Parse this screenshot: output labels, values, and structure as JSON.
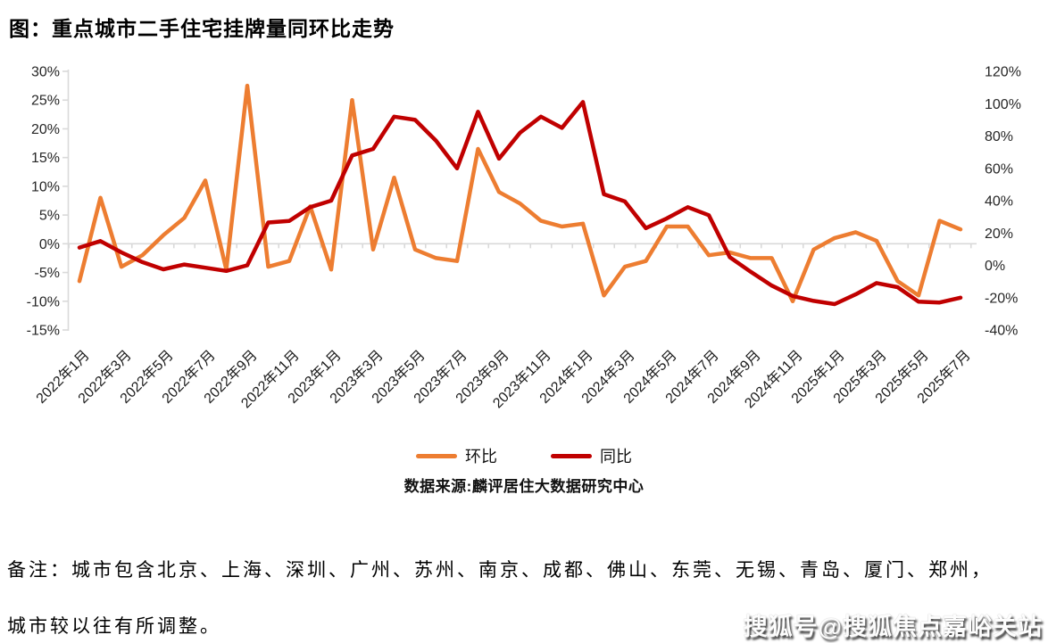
{
  "title": "图：重点城市二手住宅挂牌量同环比走势",
  "legend": [
    {
      "name": "环比",
      "color": "#ED7D31"
    },
    {
      "name": "同比",
      "color": "#C00000"
    }
  ],
  "source": "数据来源:麟评居住大数据研究中心",
  "note_line1": "备注：城市包含北京、上海、深圳、广州、苏州、南京、成都、佛山、东莞、无锡、青岛、厦门、郑州，",
  "note_line2": "城市较以往有所调整。",
  "watermark": "搜狐号@搜狐焦点嘉峪关站",
  "colors": {
    "mom_line": "#ED7D31",
    "yoy_line": "#C00000",
    "axis_gray": "#D9D9D9",
    "tick_text": "#262626"
  },
  "chart_data": {
    "type": "line",
    "title": "图：重点城市二手住宅挂牌量同环比走势",
    "grid": "zero-line only",
    "legend_position": "bottom",
    "categories": [
      "2022年1月",
      "2022年2月",
      "2022年3月",
      "2022年4月",
      "2022年5月",
      "2022年6月",
      "2022年7月",
      "2022年8月",
      "2022年9月",
      "2022年10月",
      "2022年11月",
      "2022年12月",
      "2023年1月",
      "2023年2月",
      "2023年3月",
      "2023年4月",
      "2023年5月",
      "2023年6月",
      "2023年7月",
      "2023年8月",
      "2023年9月",
      "2023年10月",
      "2023年11月",
      "2023年12月",
      "2024年1月",
      "2024年2月",
      "2024年3月",
      "2024年4月",
      "2024年5月",
      "2024年6月",
      "2024年7月",
      "2024年8月",
      "2024年9月",
      "2024年10月",
      "2024年11月",
      "2024年12月",
      "2025年1月",
      "2025年2月",
      "2025年3月",
      "2025年4月",
      "2025年5月",
      "2025年6月",
      "2025年7月"
    ],
    "x_tick_labels": [
      "2022年1月",
      "2022年3月",
      "2022年5月",
      "2022年7月",
      "2022年9月",
      "2022年11月",
      "2023年1月",
      "2023年3月",
      "2023年5月",
      "2023年7月",
      "2023年9月",
      "2023年11月",
      "2024年1月",
      "2024年3月",
      "2024年5月",
      "2024年7月",
      "2024年9月",
      "2024年11月",
      "2025年1月",
      "2025年3月",
      "2025年5月",
      "2025年7月"
    ],
    "series": [
      {
        "name": "环比",
        "axis": "left",
        "color": "#ED7D31",
        "unit": "%",
        "values": [
          -6.5,
          8,
          -4,
          -2,
          1.5,
          4.5,
          11,
          -4.5,
          27.5,
          -4,
          -3,
          6.5,
          -4.5,
          25,
          -1,
          11.5,
          -1,
          -2.5,
          -3,
          16.5,
          9,
          7,
          4,
          3,
          3.5,
          -9,
          -4,
          -3,
          3,
          3,
          -2,
          -1.5,
          -2.5,
          -2.5,
          -10,
          -1,
          1,
          2,
          0.5,
          -6.5,
          -9,
          4,
          2.5
        ]
      },
      {
        "name": "同比",
        "axis": "right",
        "color": "#C00000",
        "unit": "%",
        "values": [
          11,
          15,
          8,
          2,
          -2.5,
          0.5,
          -1.5,
          -3.5,
          0,
          26.5,
          27.5,
          36,
          40,
          68,
          72,
          92,
          90,
          77,
          60,
          95,
          66,
          82,
          92,
          85,
          101,
          44,
          39.5,
          23,
          29,
          36,
          31,
          5,
          -4,
          -12.5,
          -19,
          -22,
          -24,
          -18,
          -11,
          -13.5,
          -22.5,
          -23,
          -20
        ]
      }
    ],
    "left_axis": {
      "min": -15,
      "max": 30,
      "step": 5,
      "values": [
        30,
        25,
        20,
        15,
        10,
        5,
        0,
        -5,
        -10,
        -15
      ],
      "tick_labels": [
        "30%",
        "25%",
        "20%",
        "15%",
        "10%",
        "5%",
        "0%",
        "-5%",
        "-10%",
        "-15%"
      ]
    },
    "right_axis": {
      "min": -40,
      "max": 120,
      "step": 20,
      "values": [
        120,
        100,
        80,
        60,
        40,
        20,
        0,
        -20,
        -40
      ],
      "tick_labels": [
        "120%",
        "100%",
        "80%",
        "60%",
        "40%",
        "20%",
        "0%",
        "-20%",
        "-40%"
      ]
    }
  }
}
